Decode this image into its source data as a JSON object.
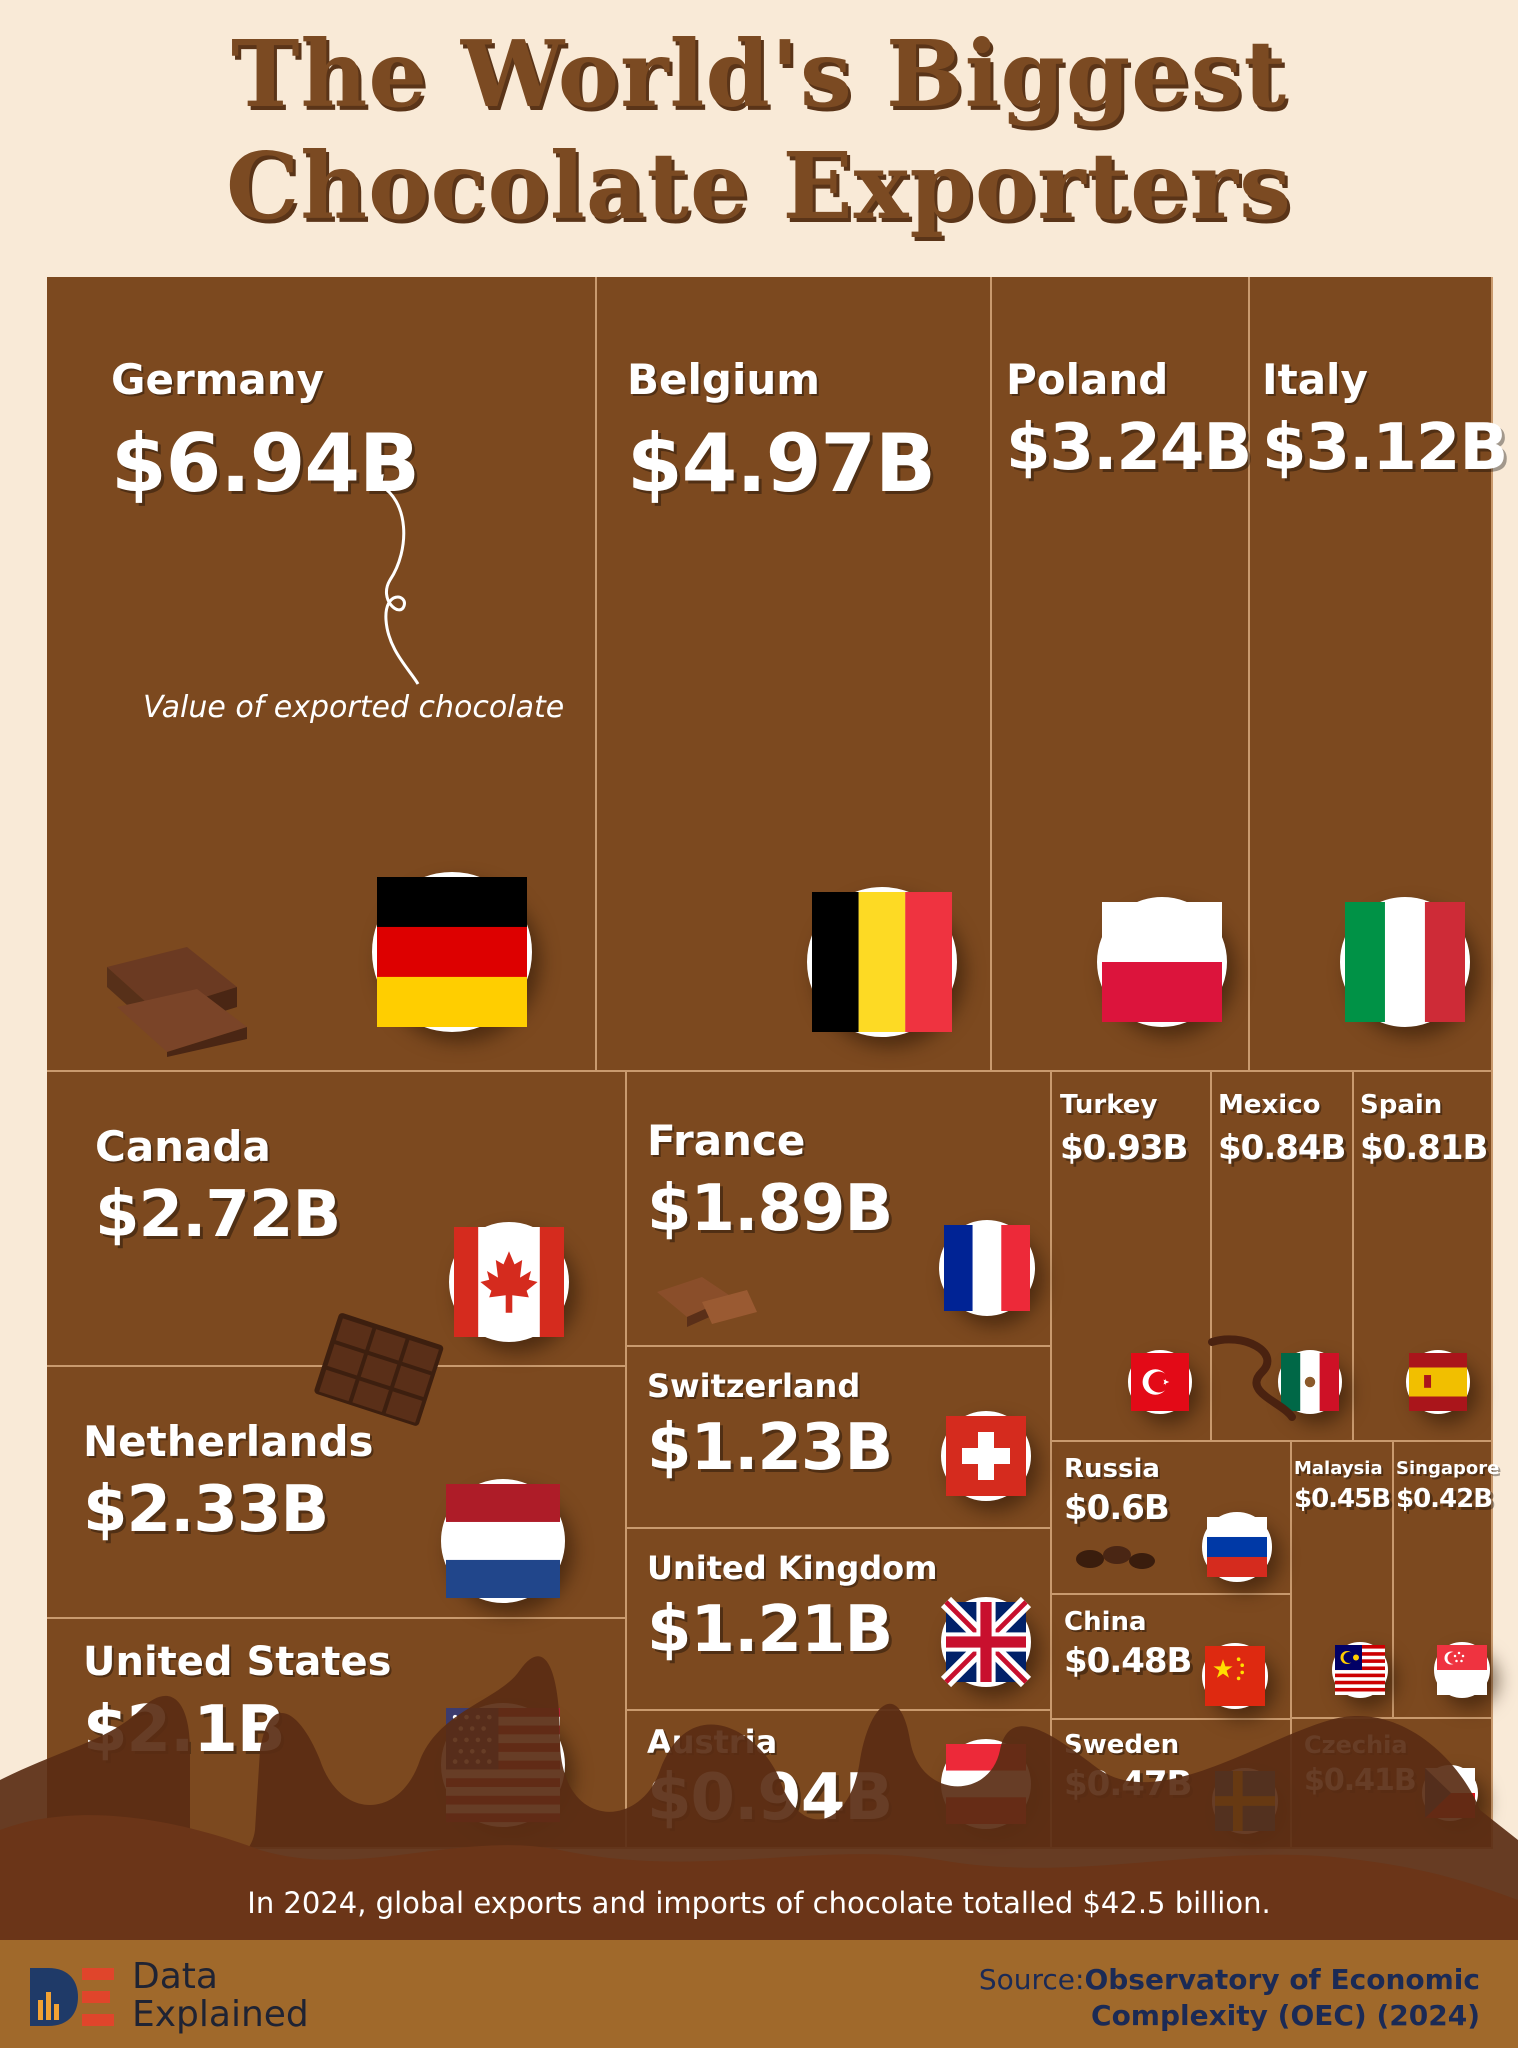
{
  "title": {
    "line1": "The World's Biggest",
    "line2": "Chocolate Exporters"
  },
  "annotation": "Value of exported chocolate",
  "footnote": "In 2024, global exports and imports of chocolate totalled $42.5 billion.",
  "brand": {
    "line1": "Data",
    "line2": "Explained"
  },
  "source": {
    "label": "Source:",
    "line1": "Observatory of Economic",
    "line2": "Complexity (OEC) (2024)"
  },
  "colors": {
    "background": "#f9ead7",
    "cell": "#7c491f",
    "cell_border": "#c99a6e",
    "title": "#7b4a22",
    "footer": "#a0692b",
    "source_text": "#1b2a55"
  },
  "chart_data": {
    "type": "treemap",
    "unit": "USD billions",
    "items": [
      {
        "name": "Germany",
        "value": 6.94,
        "label": "$6.94B",
        "flag": "germany-flag"
      },
      {
        "name": "Belgium",
        "value": 4.97,
        "label": "$4.97B",
        "flag": "belgium-flag"
      },
      {
        "name": "Poland",
        "value": 3.24,
        "label": "$3.24B",
        "flag": "poland-flag"
      },
      {
        "name": "Italy",
        "value": 3.12,
        "label": "$3.12B",
        "flag": "italy-flag"
      },
      {
        "name": "Canada",
        "value": 2.72,
        "label": "$2.72B",
        "flag": "canada-flag"
      },
      {
        "name": "Netherlands",
        "value": 2.33,
        "label": "$2.33B",
        "flag": "netherlands-flag"
      },
      {
        "name": "United States",
        "value": 2.1,
        "label": "$2.1B",
        "flag": "usa-flag"
      },
      {
        "name": "France",
        "value": 1.89,
        "label": "$1.89B",
        "flag": "france-flag"
      },
      {
        "name": "Switzerland",
        "value": 1.23,
        "label": "$1.23B",
        "flag": "switzerland-flag"
      },
      {
        "name": "United Kingdom",
        "value": 1.21,
        "label": "$1.21B",
        "flag": "uk-flag"
      },
      {
        "name": "Austria",
        "value": 0.94,
        "label": "$0.94B",
        "flag": "austria-flag"
      },
      {
        "name": "Turkey",
        "value": 0.93,
        "label": "$0.93B",
        "flag": "turkey-flag"
      },
      {
        "name": "Mexico",
        "value": 0.84,
        "label": "$0.84B",
        "flag": "mexico-flag"
      },
      {
        "name": "Spain",
        "value": 0.81,
        "label": "$0.81B",
        "flag": "spain-flag"
      },
      {
        "name": "Russia",
        "value": 0.6,
        "label": "$0.6B",
        "flag": "russia-flag"
      },
      {
        "name": "China",
        "value": 0.48,
        "label": "$0.48B",
        "flag": "china-flag"
      },
      {
        "name": "Sweden",
        "value": 0.47,
        "label": "$0.47B",
        "flag": "sweden-flag"
      },
      {
        "name": "Malaysia",
        "value": 0.45,
        "label": "$0.45B",
        "flag": "malaysia-flag"
      },
      {
        "name": "Singapore",
        "value": 0.42,
        "label": "$0.42B",
        "flag": "singapore-flag"
      },
      {
        "name": "Czechia",
        "value": 0.41,
        "label": "$0.41B",
        "flag": "czechia-flag"
      }
    ]
  }
}
